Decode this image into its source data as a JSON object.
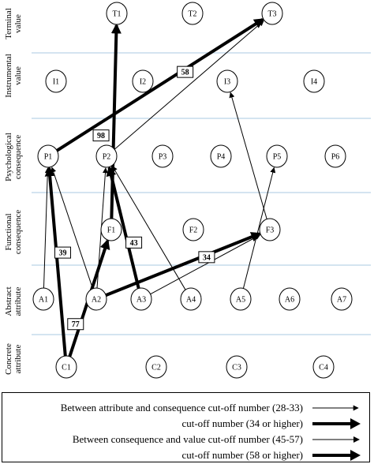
{
  "rows": [
    {
      "id": "terminal",
      "label": [
        "Terminal",
        "value"
      ]
    },
    {
      "id": "instrumental",
      "label": [
        "Instrumental",
        "value"
      ]
    },
    {
      "id": "psychological",
      "label": [
        "Psychological",
        "consequence"
      ]
    },
    {
      "id": "functional",
      "label": [
        "Functional",
        "consequence"
      ]
    },
    {
      "id": "abstract",
      "label": [
        "Abstract",
        "attribute"
      ]
    },
    {
      "id": "concrete",
      "label": [
        "Concrete",
        "attribute"
      ]
    }
  ],
  "nodes": {
    "terminal": [
      "T1",
      "T2",
      "T3"
    ],
    "instrumental": [
      "I1",
      "I2",
      "I3",
      "I4"
    ],
    "psychological": [
      "P1",
      "P2",
      "P3",
      "P4",
      "P5",
      "P6"
    ],
    "functional": [
      "F1",
      "F2",
      "F3"
    ],
    "abstract": [
      "A1",
      "A2",
      "A3",
      "A4",
      "A5",
      "A6",
      "A7"
    ],
    "concrete": [
      "C1",
      "C2",
      "C3",
      "C4"
    ]
  },
  "links": [
    {
      "from": "C1",
      "to": "P1",
      "weight": "heavy",
      "label": "39"
    },
    {
      "from": "C1",
      "to": "F1",
      "weight": "heavy",
      "label": "77"
    },
    {
      "from": "A2",
      "to": "F3",
      "weight": "heavy",
      "label": "34"
    },
    {
      "from": "A3",
      "to": "P2",
      "weight": "heavy",
      "label": "43"
    },
    {
      "from": "F1",
      "to": "T1",
      "weight": "heavy",
      "label": "98"
    },
    {
      "from": "P1",
      "to": "T3",
      "weight": "heavy",
      "label": "58"
    },
    {
      "from": "A1",
      "to": "P1",
      "weight": "light",
      "label": ""
    },
    {
      "from": "A2",
      "to": "P1",
      "weight": "light",
      "label": ""
    },
    {
      "from": "A2",
      "to": "P2",
      "weight": "light",
      "label": ""
    },
    {
      "from": "A4",
      "to": "P2",
      "weight": "light",
      "label": ""
    },
    {
      "from": "A3",
      "to": "F3",
      "weight": "light",
      "label": ""
    },
    {
      "from": "A5",
      "to": "P5",
      "weight": "light",
      "label": ""
    },
    {
      "from": "F3",
      "to": "I3",
      "weight": "light",
      "label": ""
    },
    {
      "from": "P2",
      "to": "T3",
      "weight": "light",
      "label": ""
    }
  ],
  "legend": [
    {
      "text": "Between attribute and consequence cut-off number (28-33)",
      "weight": "light"
    },
    {
      "text": "cut-off number (34 or higher)",
      "weight": "heavy"
    },
    {
      "text": "Between consequence and value cut-off number (45-57)",
      "weight": "light"
    },
    {
      "text": "cut-off number (58 or higher)",
      "weight": "heavy"
    }
  ],
  "colors": {
    "line": "#000000",
    "separator": "#a8c8e0"
  }
}
